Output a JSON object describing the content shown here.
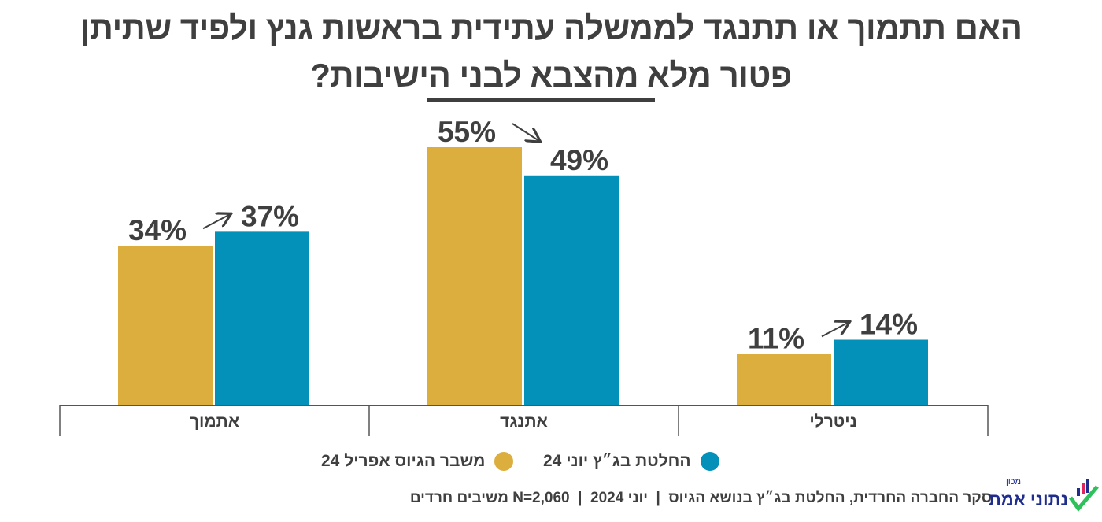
{
  "title": {
    "line1": "האם תתמוך או תתנגד לממשלה עתידית בראשות גנץ ולפיד שתיתן",
    "line2": "פטור מלא מהצבא לבני הישיבות?"
  },
  "colors": {
    "april": "#DBAE3D",
    "june": "#0391B9",
    "text": "#3f3f3f"
  },
  "chart_data": {
    "type": "bar",
    "categories": [
      "אתמוך",
      "אתנגד",
      "ניטרלי"
    ],
    "series": [
      {
        "name": "משבר הגיוס אפריל 24",
        "values": [
          34,
          55,
          11
        ],
        "labels": [
          "34%",
          "55%",
          "11%"
        ],
        "color": "#DBAE3D"
      },
      {
        "name": "החלטת בג״ץ יוני 24",
        "values": [
          37,
          49,
          14
        ],
        "labels": [
          "37%",
          "49%",
          "14%"
        ],
        "color": "#0391B9"
      }
    ],
    "ylim": [
      0,
      60
    ],
    "grid": false,
    "legend": "bottom",
    "annotations": "arrows from April value to June value"
  },
  "legend": {
    "june": "החלטת בג״ץ יוני 24",
    "april": "משבר הגיוס אפריל 24"
  },
  "footer": "סקר החברה החרדית, החלטת בג״ץ בנושא הגיוס  |  יוני 2024  |  N=2,060 משיבים חרדים",
  "logo": {
    "small": "מכון",
    "name": "נתוני אמת"
  }
}
